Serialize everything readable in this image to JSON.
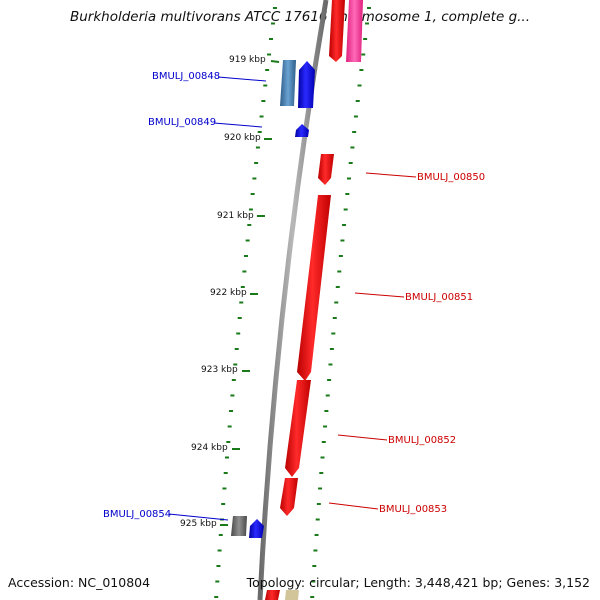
{
  "title": "Burkholderia multivorans ATCC 17616 chromosome 1, complete g...",
  "footer": {
    "accession": "Accession: NC_010804",
    "topology": "Topology: circular; Length: 3,448,421 bp; Genes: 3,152"
  },
  "ticks": [
    {
      "label": "919 kbp"
    },
    {
      "label": "920 kbp"
    },
    {
      "label": "921 kbp"
    },
    {
      "label": "922 kbp"
    },
    {
      "label": "923 kbp"
    },
    {
      "label": "924 kbp"
    },
    {
      "label": "925 kbp"
    }
  ],
  "genes": [
    {
      "label": "BMULJ_00848",
      "strand": "-",
      "color": "#0000cc"
    },
    {
      "label": "BMULJ_00849",
      "strand": "-",
      "color": "#0000cc"
    },
    {
      "label": "BMULJ_00850",
      "strand": "+",
      "color": "#cc0000"
    },
    {
      "label": "BMULJ_00851",
      "strand": "+",
      "color": "#cc0000"
    },
    {
      "label": "BMULJ_00852",
      "strand": "+",
      "color": "#cc0000"
    },
    {
      "label": "BMULJ_00853",
      "strand": "+",
      "color": "#cc0000"
    },
    {
      "label": "BMULJ_00854",
      "strand": "-",
      "color": "#0000cc"
    }
  ],
  "colors": {
    "backbone": "#8a8a8a",
    "tick": "#1a7a1a",
    "forward_feature": "#ff0000",
    "reverse_feature": "#0000ff",
    "pink_feature": "#ff3fa0",
    "steelblue_feature": "#4682b4",
    "gray_feature": "#696969",
    "tan_feature": "#d2c59a"
  }
}
